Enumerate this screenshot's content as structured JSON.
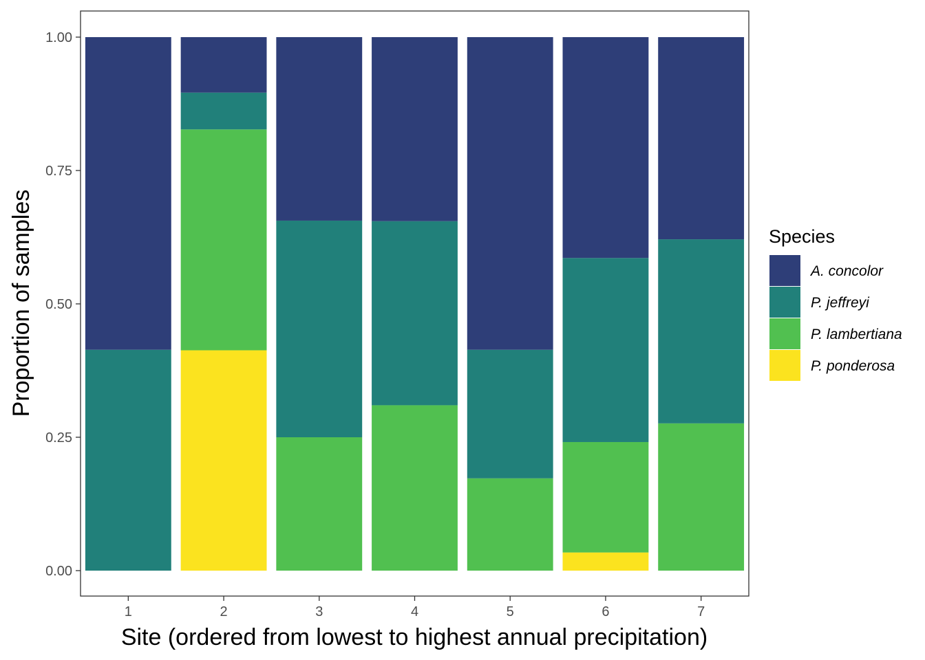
{
  "chart_data": {
    "type": "bar",
    "stacked": true,
    "categories": [
      "1",
      "2",
      "3",
      "4",
      "5",
      "6",
      "7"
    ],
    "series": [
      {
        "name": "A. concolor",
        "color": "#2E3E78",
        "values": [
          0.586,
          0.104,
          0.344,
          0.345,
          0.586,
          0.414,
          0.379
        ]
      },
      {
        "name": "P. jeffreyi",
        "color": "#21807A",
        "values": [
          0.414,
          0.069,
          0.406,
          0.345,
          0.241,
          0.345,
          0.345
        ]
      },
      {
        "name": "P. lambertiana",
        "color": "#51C050",
        "values": [
          0.0,
          0.414,
          0.25,
          0.31,
          0.173,
          0.207,
          0.276
        ]
      },
      {
        "name": "P. ponderosa",
        "color": "#FBE31F",
        "values": [
          0.0,
          0.413,
          0.0,
          0.0,
          0.0,
          0.034,
          0.0
        ]
      }
    ],
    "xlabel": "Site (ordered from lowest to highest annual precipitation)",
    "ylabel": "Proportion of samples",
    "ylim": [
      0,
      1
    ],
    "yticks": [
      "0.00",
      "0.25",
      "0.50",
      "0.75",
      "1.00"
    ],
    "legend_title": "Species",
    "legend_position": "right",
    "grid": false
  }
}
